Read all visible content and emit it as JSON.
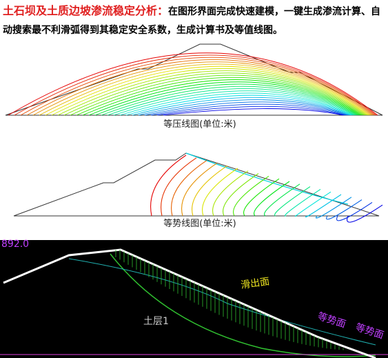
{
  "header": {
    "title": "土石坝及土质边坡渗流稳定分析：",
    "text": "在图形界面完成快速建模，一键生成渗流计算、自动搜索最不利滑弧得到其稳定安全系数，生成计算书及等值线图。"
  },
  "figures": {
    "isobar_caption": "等压线图(单位:米)",
    "equipotential_caption": "等势线图(单位:米)"
  },
  "screenshot": {
    "elevation": "892.0",
    "slip_out": "滑出面",
    "soil_layer": "土层1",
    "equipotential_1": "等势面",
    "equipotential_2": "等势面"
  }
}
